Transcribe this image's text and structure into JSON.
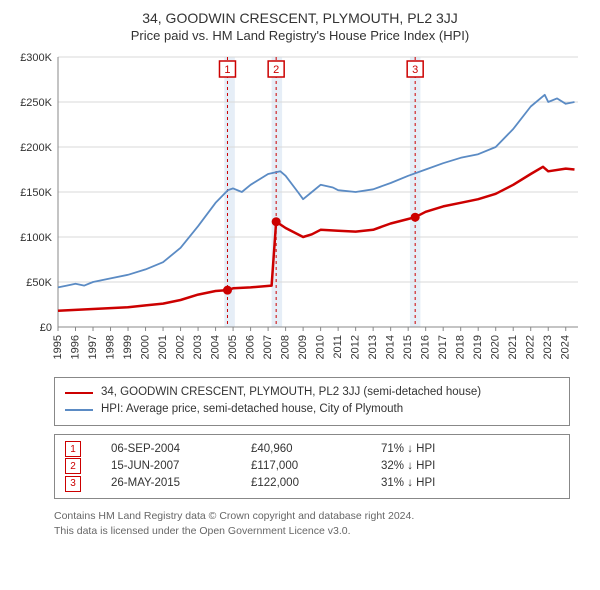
{
  "title": {
    "line1": "34, GOODWIN CRESCENT, PLYMOUTH, PL2 3JJ",
    "line2": "Price paid vs. HM Land Registry's House Price Index (HPI)"
  },
  "chart": {
    "type": "line",
    "background_color": "#ffffff",
    "grid_color": "#d9d9d9",
    "axis_color": "#888888",
    "x_years": [
      1995,
      1996,
      1997,
      1998,
      1999,
      2000,
      2001,
      2002,
      2003,
      2004,
      2005,
      2006,
      2007,
      2008,
      2009,
      2010,
      2011,
      2012,
      2013,
      2014,
      2015,
      2016,
      2017,
      2018,
      2019,
      2020,
      2021,
      2022,
      2023,
      2024
    ],
    "ylim": [
      0,
      300000
    ],
    "ytick_step": 50000,
    "ytick_labels": [
      "£0",
      "£50K",
      "£100K",
      "£150K",
      "£200K",
      "£250K",
      "£300K"
    ],
    "band_color": "#e6eef7",
    "event_band_years": [
      [
        2004.5,
        2005.1
      ],
      [
        2007.2,
        2007.8
      ],
      [
        2015.1,
        2015.7
      ]
    ],
    "event_line_color": "#cc0000",
    "event_line_dash": "3,3",
    "series": [
      {
        "name": "price_paid",
        "label": "34, GOODWIN CRESCENT, PLYMOUTH, PL2 3JJ (semi-detached house)",
        "color": "#cc0000",
        "width": 2.5,
        "points": [
          [
            1995,
            18000
          ],
          [
            1996,
            19000
          ],
          [
            1997,
            20000
          ],
          [
            1998,
            21000
          ],
          [
            1999,
            22000
          ],
          [
            2000,
            24000
          ],
          [
            2001,
            26000
          ],
          [
            2002,
            30000
          ],
          [
            2003,
            36000
          ],
          [
            2004,
            40000
          ],
          [
            2004.68,
            40960
          ],
          [
            2005,
            43000
          ],
          [
            2006,
            44000
          ],
          [
            2007.2,
            46000
          ],
          [
            2007.46,
            117000
          ],
          [
            2008,
            110000
          ],
          [
            2009,
            100000
          ],
          [
            2009.5,
            103000
          ],
          [
            2010,
            108000
          ],
          [
            2011,
            107000
          ],
          [
            2012,
            106000
          ],
          [
            2013,
            108000
          ],
          [
            2014,
            115000
          ],
          [
            2015,
            120000
          ],
          [
            2015.4,
            122000
          ],
          [
            2016,
            128000
          ],
          [
            2017,
            134000
          ],
          [
            2018,
            138000
          ],
          [
            2019,
            142000
          ],
          [
            2020,
            148000
          ],
          [
            2021,
            158000
          ],
          [
            2022,
            170000
          ],
          [
            2022.7,
            178000
          ],
          [
            2023,
            173000
          ],
          [
            2024,
            176000
          ],
          [
            2024.5,
            175000
          ]
        ],
        "sale_markers": [
          {
            "x": 2004.68,
            "y": 40960
          },
          {
            "x": 2007.46,
            "y": 117000
          },
          {
            "x": 2015.4,
            "y": 122000
          }
        ]
      },
      {
        "name": "hpi",
        "label": "HPI: Average price, semi-detached house, City of Plymouth",
        "color": "#5b8bc4",
        "width": 1.8,
        "points": [
          [
            1995,
            44000
          ],
          [
            1995.5,
            46000
          ],
          [
            1996,
            48000
          ],
          [
            1996.5,
            46000
          ],
          [
            1997,
            50000
          ],
          [
            1998,
            54000
          ],
          [
            1999,
            58000
          ],
          [
            2000,
            64000
          ],
          [
            2001,
            72000
          ],
          [
            2002,
            88000
          ],
          [
            2003,
            112000
          ],
          [
            2004,
            138000
          ],
          [
            2004.7,
            152000
          ],
          [
            2005,
            154000
          ],
          [
            2005.5,
            150000
          ],
          [
            2006,
            158000
          ],
          [
            2007,
            170000
          ],
          [
            2007.7,
            173000
          ],
          [
            2008,
            168000
          ],
          [
            2008.7,
            150000
          ],
          [
            2009,
            142000
          ],
          [
            2009.5,
            150000
          ],
          [
            2010,
            158000
          ],
          [
            2010.7,
            155000
          ],
          [
            2011,
            152000
          ],
          [
            2012,
            150000
          ],
          [
            2013,
            153000
          ],
          [
            2014,
            160000
          ],
          [
            2015,
            168000
          ],
          [
            2016,
            175000
          ],
          [
            2017,
            182000
          ],
          [
            2018,
            188000
          ],
          [
            2019,
            192000
          ],
          [
            2020,
            200000
          ],
          [
            2021,
            220000
          ],
          [
            2022,
            245000
          ],
          [
            2022.8,
            258000
          ],
          [
            2023,
            250000
          ],
          [
            2023.5,
            254000
          ],
          [
            2024,
            248000
          ],
          [
            2024.5,
            250000
          ]
        ]
      }
    ],
    "event_boxes": [
      {
        "n": "1",
        "x": 2004.68
      },
      {
        "n": "2",
        "x": 2007.46
      },
      {
        "n": "3",
        "x": 2015.4
      }
    ]
  },
  "legend": {
    "series0": "34, GOODWIN CRESCENT, PLYMOUTH, PL2 3JJ (semi-detached house)",
    "series1": "HPI: Average price, semi-detached house, City of Plymouth"
  },
  "events": [
    {
      "n": "1",
      "date": "06-SEP-2004",
      "price": "£40,960",
      "delta": "71% ↓ HPI"
    },
    {
      "n": "2",
      "date": "15-JUN-2007",
      "price": "£117,000",
      "delta": "32% ↓ HPI"
    },
    {
      "n": "3",
      "date": "26-MAY-2015",
      "price": "£122,000",
      "delta": "31% ↓ HPI"
    }
  ],
  "footer": {
    "line1": "Contains HM Land Registry data © Crown copyright and database right 2024.",
    "line2": "This data is licensed under the Open Government Licence v3.0."
  },
  "colors": {
    "red": "#cc0000",
    "blue": "#5b8bc4"
  }
}
